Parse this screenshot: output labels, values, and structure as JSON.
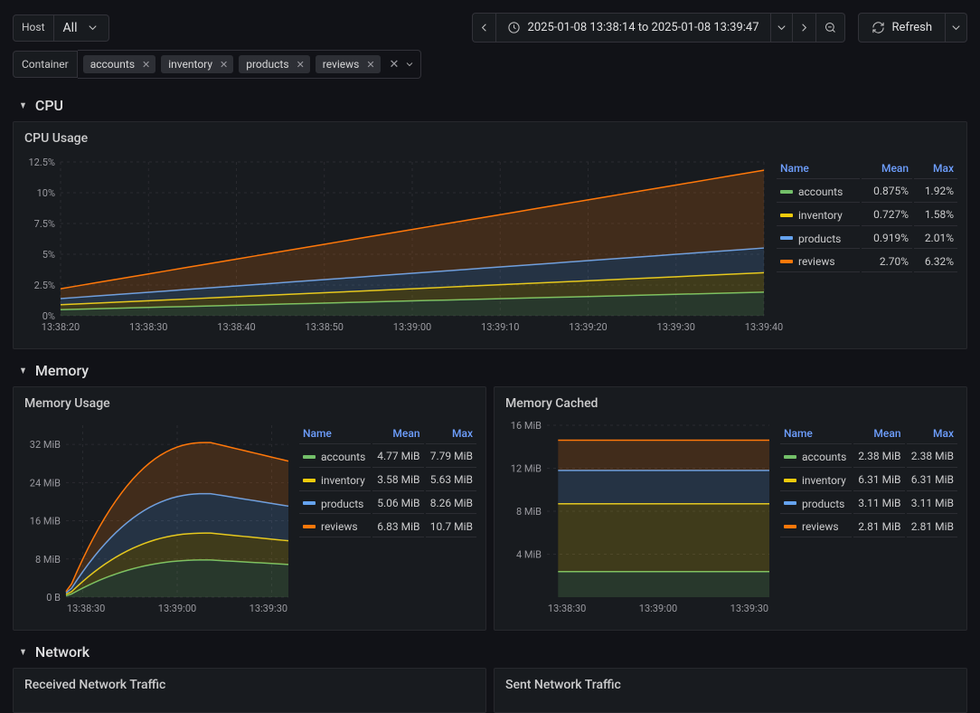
{
  "filters": {
    "host_label": "Host",
    "host_value": "All",
    "container_label": "Container",
    "tags": [
      "accounts",
      "inventory",
      "products",
      "reviews"
    ]
  },
  "time": {
    "range": "2025-01-08 13:38:14 to 2025-01-08 13:39:47"
  },
  "refresh": {
    "label": "Refresh"
  },
  "colors": {
    "accounts": "#73bf69",
    "inventory": "#f2cc0c",
    "products": "#65a3ef",
    "reviews": "#ff780a",
    "grid": "#2a2b30",
    "axis_text": "#9a9aa0"
  },
  "sections": {
    "cpu": {
      "title": "CPU"
    },
    "memory": {
      "title": "Memory"
    },
    "network": {
      "title": "Network"
    }
  },
  "panels": {
    "cpu_usage": {
      "title": "CPU Usage",
      "type": "area-stacked",
      "y_ticks": [
        "0%",
        "2.5%",
        "5%",
        "7.5%",
        "10%",
        "12.5%"
      ],
      "x_ticks": [
        "13:38:20",
        "13:38:30",
        "13:38:40",
        "13:38:50",
        "13:39:00",
        "13:39:10",
        "13:39:20",
        "13:39:30",
        "13:39:40"
      ],
      "legend": {
        "columns": [
          "Name",
          "Mean",
          "Max"
        ],
        "rows": [
          {
            "name": "accounts",
            "mean": "0.875%",
            "max": "1.92%",
            "color": "#73bf69"
          },
          {
            "name": "inventory",
            "mean": "0.727%",
            "max": "1.58%",
            "color": "#f2cc0c"
          },
          {
            "name": "products",
            "mean": "0.919%",
            "max": "2.01%",
            "color": "#65a3ef"
          },
          {
            "name": "reviews",
            "mean": "2.70%",
            "max": "6.32%",
            "color": "#ff780a"
          }
        ]
      },
      "series_stack": [
        {
          "color": "#73bf69",
          "start": 0.5,
          "end": 1.92
        },
        {
          "color": "#f2cc0c",
          "start": 0.4,
          "end": 1.58
        },
        {
          "color": "#65a3ef",
          "start": 0.5,
          "end": 2.01
        },
        {
          "color": "#ff780a",
          "start": 0.8,
          "end": 6.32
        }
      ],
      "y_max": 12.5
    },
    "memory_usage": {
      "title": "Memory Usage",
      "type": "area-stacked",
      "y_ticks": [
        "0 B",
        "8 MiB",
        "16 MiB",
        "24 MiB",
        "32 MiB"
      ],
      "x_ticks": [
        "13:38:30",
        "13:39:00",
        "13:39:30"
      ],
      "legend": {
        "columns": [
          "Name",
          "Mean",
          "Max"
        ],
        "rows": [
          {
            "name": "accounts",
            "mean": "4.77 MiB",
            "max": "7.79 MiB",
            "color": "#73bf69"
          },
          {
            "name": "inventory",
            "mean": "3.58 MiB",
            "max": "5.63 MiB",
            "color": "#f2cc0c"
          },
          {
            "name": "products",
            "mean": "5.06 MiB",
            "max": "8.26 MiB",
            "color": "#65a3ef"
          },
          {
            "name": "reviews",
            "mean": "6.83 MiB",
            "max": "10.7 MiB",
            "color": "#ff780a"
          }
        ]
      }
    },
    "memory_cached": {
      "title": "Memory Cached",
      "type": "area-stacked-flat",
      "y_ticks": [
        "4 MiB",
        "8 MiB",
        "12 MiB",
        "16 MiB"
      ],
      "x_ticks": [
        "13:38:30",
        "13:39:00",
        "13:39:30"
      ],
      "legend": {
        "columns": [
          "Name",
          "Mean",
          "Max"
        ],
        "rows": [
          {
            "name": "accounts",
            "mean": "2.38 MiB",
            "max": "2.38 MiB",
            "color": "#73bf69"
          },
          {
            "name": "inventory",
            "mean": "6.31 MiB",
            "max": "6.31 MiB",
            "color": "#f2cc0c"
          },
          {
            "name": "products",
            "mean": "3.11 MiB",
            "max": "3.11 MiB",
            "color": "#65a3ef"
          },
          {
            "name": "reviews",
            "mean": "2.81 MiB",
            "max": "2.81 MiB",
            "color": "#ff780a"
          }
        ]
      }
    },
    "net_rx": {
      "title": "Received Network Traffic"
    },
    "net_tx": {
      "title": "Sent Network Traffic"
    }
  }
}
